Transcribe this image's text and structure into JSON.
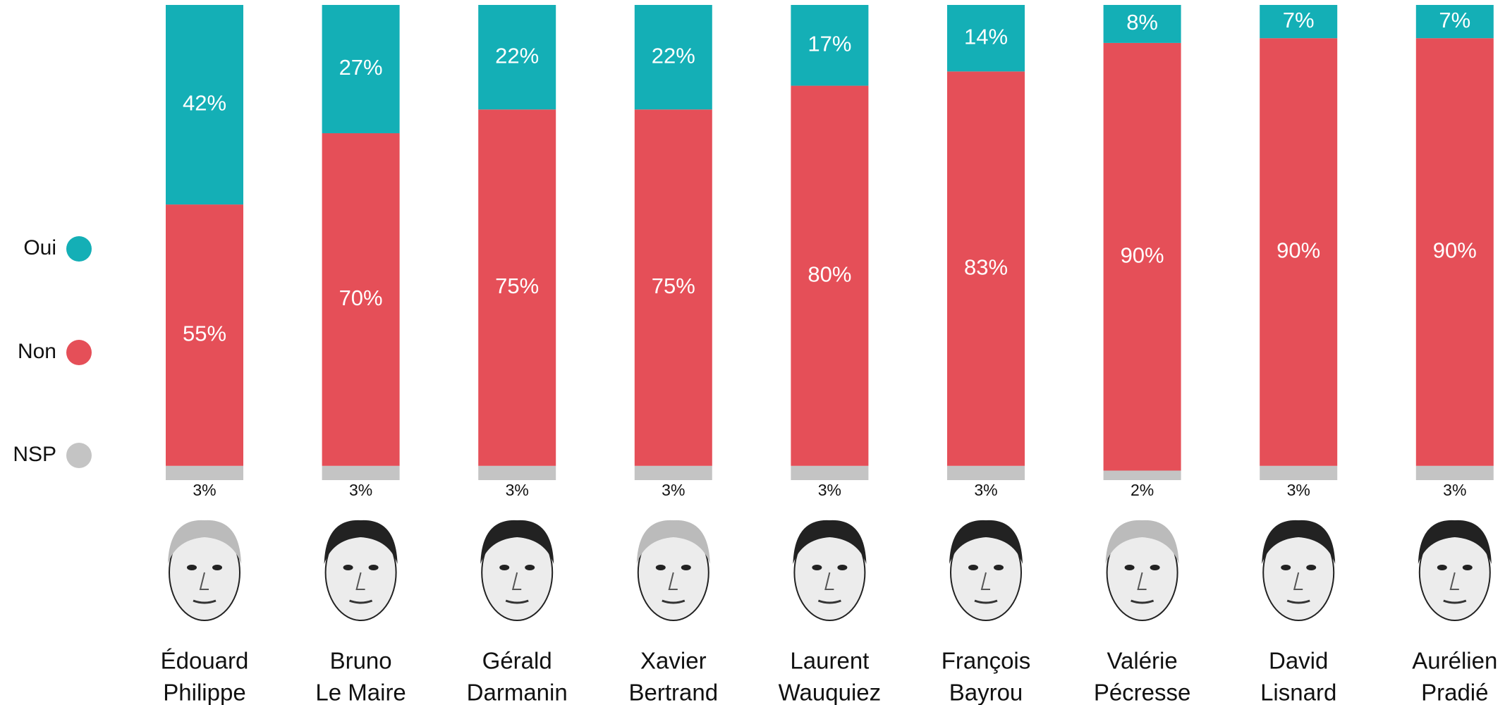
{
  "chart_data": {
    "type": "stacked-bar",
    "categories": [
      [
        "Édouard",
        "Philippe"
      ],
      [
        "Bruno",
        "Le Maire"
      ],
      [
        "Gérald",
        "Darmanin"
      ],
      [
        "Xavier",
        "Bertrand"
      ],
      [
        "Laurent",
        "Wauquiez"
      ],
      [
        "François",
        "Bayrou"
      ],
      [
        "Valérie",
        "Pécresse"
      ],
      [
        "David",
        "Lisnard"
      ],
      [
        "Aurélien",
        "Pradié"
      ]
    ],
    "series": [
      {
        "name": "Oui",
        "color": "#14afb6",
        "values": [
          42,
          27,
          22,
          22,
          17,
          14,
          8,
          7,
          7
        ],
        "value_labels": [
          "42%",
          "27%",
          "22%",
          "22%",
          "17%",
          "14%",
          "8%",
          "7%",
          "7%"
        ]
      },
      {
        "name": "Non",
        "color": "#e54f58",
        "values": [
          55,
          70,
          75,
          75,
          80,
          83,
          90,
          90,
          90
        ],
        "value_labels": [
          "55%",
          "70%",
          "75%",
          "75%",
          "80%",
          "83%",
          "90%",
          "90%",
          "90%"
        ]
      },
      {
        "name": "NSP",
        "color": "#c4c4c4",
        "values": [
          3,
          3,
          3,
          3,
          3,
          3,
          2,
          3,
          3
        ],
        "value_labels": [
          "3%",
          "3%",
          "3%",
          "3%",
          "3%",
          "3%",
          "2%",
          "3%",
          "3%"
        ]
      }
    ]
  }
}
